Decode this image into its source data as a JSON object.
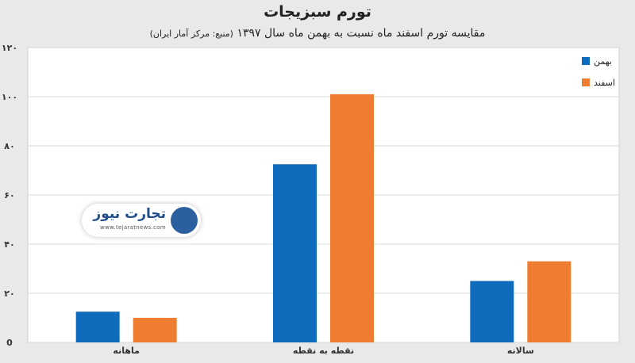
{
  "chart_data": {
    "type": "bar",
    "title": "تورم سبزیجات",
    "subtitle": "مقایسه تورم اسفند ماه نسبت به بهمن ماه سال ۱۳۹۷",
    "source": "(منبع: مرکز آمار ایران)",
    "categories": [
      "ماهانه",
      "نقطه به نقطه",
      "سالانه"
    ],
    "series": [
      {
        "name": "بهمن",
        "values": [
          12.5,
          72.5,
          25
        ]
      },
      {
        "name": "اسفند",
        "values": [
          10,
          101,
          33
        ]
      }
    ],
    "ylim": [
      0,
      120
    ],
    "yticks": [
      0,
      20,
      40,
      60,
      80,
      100,
      120
    ],
    "ytick_labels": [
      "0",
      "۲۰",
      "۴۰",
      "۶۰",
      "۸۰",
      "۱۰۰",
      "۱۲۰"
    ],
    "grid": true,
    "legend_position": "top-right",
    "colors": [
      "#0f6cbd",
      "#ee7d31"
    ]
  },
  "watermark": {
    "name": "تجارت نیوز",
    "url": "www.tejaratnews.com"
  }
}
